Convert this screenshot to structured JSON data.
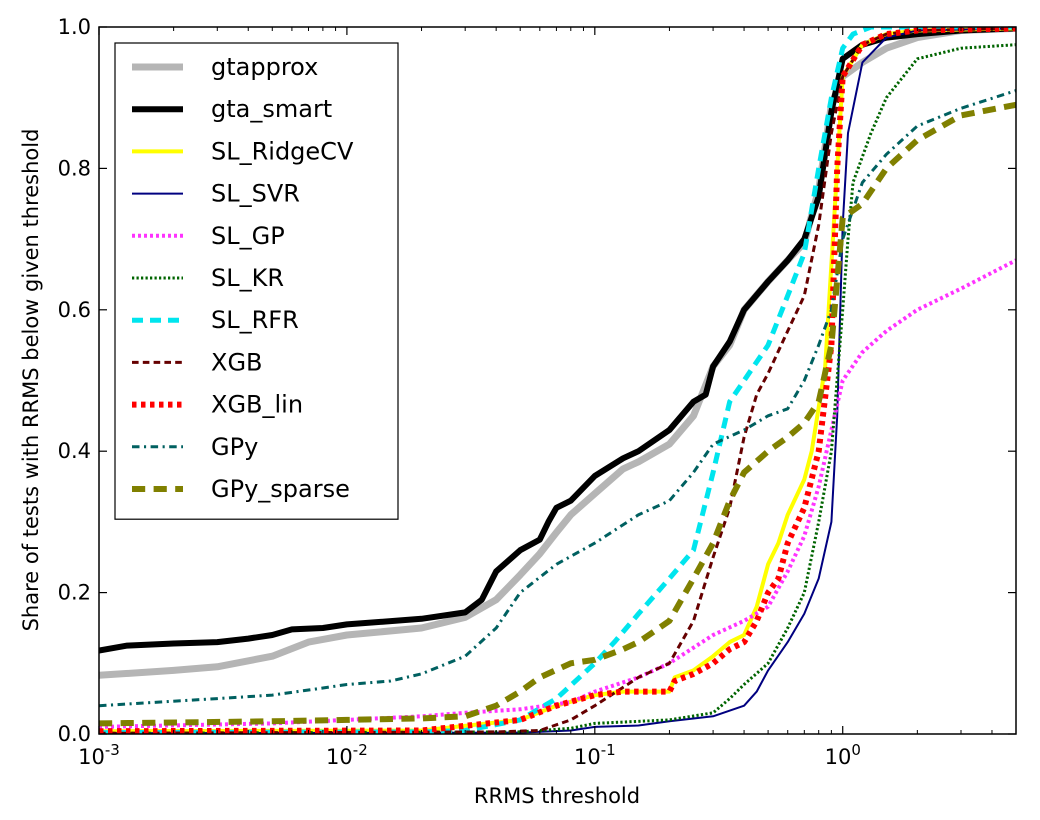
{
  "chart_data": {
    "type": "line",
    "xlabel": "RRMS threshold",
    "ylabel": "Share of tests with RRMS below given threshold",
    "xscale": "log",
    "xlim": [
      0.001,
      5
    ],
    "ylim": [
      0.0,
      1.0
    ],
    "grid": false,
    "legend_position": "upper-left",
    "x_ticks": [
      {
        "value": 0.001,
        "base": "10",
        "exp": "-3"
      },
      {
        "value": 0.01,
        "base": "10",
        "exp": "-2"
      },
      {
        "value": 0.1,
        "base": "10",
        "exp": "-1"
      },
      {
        "value": 1,
        "base": "10",
        "exp": "0"
      }
    ],
    "y_ticks": [
      {
        "value": 0.0,
        "label": "0.0"
      },
      {
        "value": 0.2,
        "label": "0.2"
      },
      {
        "value": 0.4,
        "label": "0.4"
      },
      {
        "value": 0.6,
        "label": "0.6"
      },
      {
        "value": 0.8,
        "label": "0.8"
      },
      {
        "value": 1.0,
        "label": "1.0"
      }
    ],
    "series": [
      {
        "name": "gtapprox",
        "color": "#b5b5b5",
        "style": "solid",
        "width": 7,
        "points": [
          [
            0.001,
            0.083
          ],
          [
            0.002,
            0.09
          ],
          [
            0.003,
            0.095
          ],
          [
            0.005,
            0.11
          ],
          [
            0.007,
            0.13
          ],
          [
            0.01,
            0.14
          ],
          [
            0.02,
            0.15
          ],
          [
            0.03,
            0.165
          ],
          [
            0.04,
            0.19
          ],
          [
            0.05,
            0.225
          ],
          [
            0.06,
            0.255
          ],
          [
            0.07,
            0.285
          ],
          [
            0.08,
            0.31
          ],
          [
            0.1,
            0.34
          ],
          [
            0.13,
            0.375
          ],
          [
            0.15,
            0.385
          ],
          [
            0.2,
            0.41
          ],
          [
            0.25,
            0.45
          ],
          [
            0.3,
            0.52
          ],
          [
            0.35,
            0.55
          ],
          [
            0.4,
            0.6
          ],
          [
            0.5,
            0.64
          ],
          [
            0.6,
            0.67
          ],
          [
            0.7,
            0.695
          ],
          [
            0.8,
            0.77
          ],
          [
            0.9,
            0.89
          ],
          [
            1.0,
            0.93
          ],
          [
            1.2,
            0.95
          ],
          [
            1.5,
            0.97
          ],
          [
            2,
            0.985
          ],
          [
            3,
            0.995
          ],
          [
            5,
            0.998
          ]
        ]
      },
      {
        "name": "gta_smart",
        "color": "#000000",
        "style": "solid",
        "width": 6,
        "points": [
          [
            0.001,
            0.118
          ],
          [
            0.0013,
            0.125
          ],
          [
            0.002,
            0.128
          ],
          [
            0.003,
            0.13
          ],
          [
            0.004,
            0.135
          ],
          [
            0.005,
            0.14
          ],
          [
            0.006,
            0.148
          ],
          [
            0.008,
            0.15
          ],
          [
            0.01,
            0.155
          ],
          [
            0.02,
            0.163
          ],
          [
            0.03,
            0.172
          ],
          [
            0.035,
            0.19
          ],
          [
            0.04,
            0.23
          ],
          [
            0.05,
            0.26
          ],
          [
            0.06,
            0.275
          ],
          [
            0.065,
            0.3
          ],
          [
            0.07,
            0.32
          ],
          [
            0.08,
            0.33
          ],
          [
            0.1,
            0.365
          ],
          [
            0.13,
            0.39
          ],
          [
            0.15,
            0.4
          ],
          [
            0.2,
            0.43
          ],
          [
            0.25,
            0.47
          ],
          [
            0.28,
            0.48
          ],
          [
            0.3,
            0.52
          ],
          [
            0.35,
            0.555
          ],
          [
            0.4,
            0.6
          ],
          [
            0.5,
            0.64
          ],
          [
            0.6,
            0.67
          ],
          [
            0.7,
            0.7
          ],
          [
            0.8,
            0.76
          ],
          [
            0.9,
            0.88
          ],
          [
            1.0,
            0.955
          ],
          [
            1.2,
            0.975
          ],
          [
            1.5,
            0.985
          ],
          [
            2,
            0.99
          ],
          [
            3,
            0.995
          ],
          [
            5,
            0.998
          ]
        ]
      },
      {
        "name": "SL_RidgeCV",
        "color": "#ffff00",
        "style": "solid",
        "width": 4,
        "points": [
          [
            0.001,
            0.004
          ],
          [
            0.02,
            0.005
          ],
          [
            0.05,
            0.02
          ],
          [
            0.07,
            0.04
          ],
          [
            0.1,
            0.055
          ],
          [
            0.13,
            0.06
          ],
          [
            0.2,
            0.06
          ],
          [
            0.21,
            0.08
          ],
          [
            0.25,
            0.09
          ],
          [
            0.3,
            0.11
          ],
          [
            0.35,
            0.13
          ],
          [
            0.4,
            0.14
          ],
          [
            0.45,
            0.18
          ],
          [
            0.5,
            0.24
          ],
          [
            0.55,
            0.27
          ],
          [
            0.6,
            0.31
          ],
          [
            0.7,
            0.36
          ],
          [
            0.75,
            0.4
          ],
          [
            0.85,
            0.52
          ],
          [
            0.95,
            0.8
          ],
          [
            1.0,
            0.93
          ],
          [
            1.2,
            0.975
          ],
          [
            1.5,
            0.99
          ],
          [
            2,
            0.995
          ],
          [
            5,
            0.998
          ]
        ]
      },
      {
        "name": "SL_SVR",
        "color": "#000080",
        "style": "solid",
        "width": 2,
        "points": [
          [
            0.001,
            0.001
          ],
          [
            0.05,
            0.002
          ],
          [
            0.08,
            0.005
          ],
          [
            0.1,
            0.01
          ],
          [
            0.15,
            0.012
          ],
          [
            0.2,
            0.018
          ],
          [
            0.3,
            0.025
          ],
          [
            0.4,
            0.04
          ],
          [
            0.45,
            0.06
          ],
          [
            0.5,
            0.09
          ],
          [
            0.6,
            0.13
          ],
          [
            0.7,
            0.17
          ],
          [
            0.8,
            0.22
          ],
          [
            0.9,
            0.3
          ],
          [
            0.95,
            0.45
          ],
          [
            1.0,
            0.72
          ],
          [
            1.05,
            0.85
          ],
          [
            1.2,
            0.95
          ],
          [
            1.5,
            0.985
          ],
          [
            2,
            0.995
          ],
          [
            5,
            0.998
          ]
        ]
      },
      {
        "name": "SL_GP",
        "color": "#ff33ff",
        "style": "dotted",
        "width": 4,
        "points": [
          [
            0.001,
            0.01
          ],
          [
            0.005,
            0.015
          ],
          [
            0.01,
            0.02
          ],
          [
            0.02,
            0.025
          ],
          [
            0.03,
            0.03
          ],
          [
            0.05,
            0.035
          ],
          [
            0.08,
            0.045
          ],
          [
            0.1,
            0.06
          ],
          [
            0.15,
            0.08
          ],
          [
            0.2,
            0.1
          ],
          [
            0.3,
            0.14
          ],
          [
            0.4,
            0.16
          ],
          [
            0.5,
            0.18
          ],
          [
            0.6,
            0.23
          ],
          [
            0.7,
            0.28
          ],
          [
            0.8,
            0.35
          ],
          [
            0.9,
            0.43
          ],
          [
            1.0,
            0.5
          ],
          [
            1.2,
            0.54
          ],
          [
            1.5,
            0.57
          ],
          [
            2,
            0.6
          ],
          [
            3,
            0.63
          ],
          [
            5,
            0.67
          ]
        ]
      },
      {
        "name": "SL_KR",
        "color": "#006400",
        "style": "dotted",
        "width": 3,
        "points": [
          [
            0.001,
            0.001
          ],
          [
            0.05,
            0.003
          ],
          [
            0.08,
            0.008
          ],
          [
            0.1,
            0.015
          ],
          [
            0.2,
            0.02
          ],
          [
            0.3,
            0.03
          ],
          [
            0.35,
            0.05
          ],
          [
            0.4,
            0.07
          ],
          [
            0.5,
            0.1
          ],
          [
            0.6,
            0.15
          ],
          [
            0.7,
            0.2
          ],
          [
            0.8,
            0.3
          ],
          [
            0.9,
            0.4
          ],
          [
            1.0,
            0.6
          ],
          [
            1.05,
            0.7
          ],
          [
            1.1,
            0.78
          ],
          [
            1.3,
            0.85
          ],
          [
            1.5,
            0.9
          ],
          [
            2,
            0.955
          ],
          [
            3,
            0.97
          ],
          [
            5,
            0.975
          ]
        ]
      },
      {
        "name": "SL_RFR",
        "color": "#00e5ee",
        "style": "dashed",
        "width": 5,
        "points": [
          [
            0.001,
            0.002
          ],
          [
            0.02,
            0.003
          ],
          [
            0.03,
            0.005
          ],
          [
            0.05,
            0.02
          ],
          [
            0.07,
            0.05
          ],
          [
            0.1,
            0.1
          ],
          [
            0.12,
            0.13
          ],
          [
            0.15,
            0.17
          ],
          [
            0.2,
            0.22
          ],
          [
            0.25,
            0.26
          ],
          [
            0.3,
            0.37
          ],
          [
            0.35,
            0.47
          ],
          [
            0.4,
            0.5
          ],
          [
            0.5,
            0.55
          ],
          [
            0.6,
            0.62
          ],
          [
            0.7,
            0.68
          ],
          [
            0.8,
            0.8
          ],
          [
            0.9,
            0.9
          ],
          [
            1.0,
            0.97
          ],
          [
            1.1,
            0.99
          ],
          [
            1.3,
            1.0
          ],
          [
            5,
            1.0
          ]
        ]
      },
      {
        "name": "XGB",
        "color": "#660000",
        "style": "dashed",
        "width": 3,
        "points": [
          [
            0.001,
            0.001
          ],
          [
            0.04,
            0.003
          ],
          [
            0.06,
            0.005
          ],
          [
            0.08,
            0.02
          ],
          [
            0.1,
            0.04
          ],
          [
            0.15,
            0.08
          ],
          [
            0.2,
            0.1
          ],
          [
            0.25,
            0.16
          ],
          [
            0.3,
            0.25
          ],
          [
            0.35,
            0.32
          ],
          [
            0.4,
            0.42
          ],
          [
            0.45,
            0.48
          ],
          [
            0.5,
            0.51
          ],
          [
            0.6,
            0.57
          ],
          [
            0.7,
            0.62
          ],
          [
            0.8,
            0.72
          ],
          [
            0.9,
            0.85
          ],
          [
            1.0,
            0.93
          ],
          [
            1.2,
            0.975
          ],
          [
            1.5,
            0.99
          ],
          [
            2,
            0.995
          ],
          [
            5,
            0.998
          ]
        ]
      },
      {
        "name": "XGB_lin",
        "color": "#ff0000",
        "style": "dotted",
        "width": 6,
        "points": [
          [
            0.001,
            0.004
          ],
          [
            0.02,
            0.005
          ],
          [
            0.05,
            0.02
          ],
          [
            0.07,
            0.04
          ],
          [
            0.1,
            0.055
          ],
          [
            0.13,
            0.06
          ],
          [
            0.2,
            0.06
          ],
          [
            0.21,
            0.075
          ],
          [
            0.25,
            0.085
          ],
          [
            0.3,
            0.1
          ],
          [
            0.35,
            0.12
          ],
          [
            0.4,
            0.13
          ],
          [
            0.45,
            0.16
          ],
          [
            0.5,
            0.2
          ],
          [
            0.55,
            0.22
          ],
          [
            0.6,
            0.27
          ],
          [
            0.7,
            0.32
          ],
          [
            0.8,
            0.4
          ],
          [
            0.9,
            0.55
          ],
          [
            0.95,
            0.8
          ],
          [
            1.0,
            0.93
          ],
          [
            1.2,
            0.975
          ],
          [
            1.5,
            0.99
          ],
          [
            2,
            0.995
          ],
          [
            5,
            0.998
          ]
        ]
      },
      {
        "name": "GPy",
        "color": "#006060",
        "style": "dashdot",
        "width": 3,
        "points": [
          [
            0.001,
            0.04
          ],
          [
            0.003,
            0.05
          ],
          [
            0.005,
            0.055
          ],
          [
            0.008,
            0.065
          ],
          [
            0.01,
            0.07
          ],
          [
            0.015,
            0.075
          ],
          [
            0.02,
            0.085
          ],
          [
            0.03,
            0.11
          ],
          [
            0.04,
            0.15
          ],
          [
            0.05,
            0.2
          ],
          [
            0.07,
            0.24
          ],
          [
            0.1,
            0.27
          ],
          [
            0.15,
            0.31
          ],
          [
            0.2,
            0.33
          ],
          [
            0.25,
            0.37
          ],
          [
            0.3,
            0.41
          ],
          [
            0.4,
            0.43
          ],
          [
            0.5,
            0.45
          ],
          [
            0.6,
            0.46
          ],
          [
            0.7,
            0.5
          ],
          [
            0.8,
            0.55
          ],
          [
            0.9,
            0.6
          ],
          [
            1.0,
            0.7
          ],
          [
            1.2,
            0.78
          ],
          [
            1.5,
            0.82
          ],
          [
            2,
            0.86
          ],
          [
            3,
            0.885
          ],
          [
            5,
            0.91
          ]
        ]
      },
      {
        "name": "GPy_sparse",
        "color": "#808000",
        "style": "dashed",
        "width": 6,
        "points": [
          [
            0.001,
            0.015
          ],
          [
            0.005,
            0.018
          ],
          [
            0.01,
            0.02
          ],
          [
            0.02,
            0.022
          ],
          [
            0.03,
            0.025
          ],
          [
            0.04,
            0.04
          ],
          [
            0.05,
            0.06
          ],
          [
            0.06,
            0.08
          ],
          [
            0.08,
            0.1
          ],
          [
            0.1,
            0.105
          ],
          [
            0.13,
            0.12
          ],
          [
            0.15,
            0.13
          ],
          [
            0.2,
            0.16
          ],
          [
            0.25,
            0.22
          ],
          [
            0.3,
            0.27
          ],
          [
            0.35,
            0.33
          ],
          [
            0.4,
            0.37
          ],
          [
            0.5,
            0.4
          ],
          [
            0.6,
            0.42
          ],
          [
            0.7,
            0.44
          ],
          [
            0.8,
            0.47
          ],
          [
            0.9,
            0.55
          ],
          [
            1.0,
            0.73
          ],
          [
            1.2,
            0.75
          ],
          [
            1.5,
            0.8
          ],
          [
            2,
            0.84
          ],
          [
            3,
            0.875
          ],
          [
            5,
            0.89
          ]
        ]
      }
    ]
  }
}
